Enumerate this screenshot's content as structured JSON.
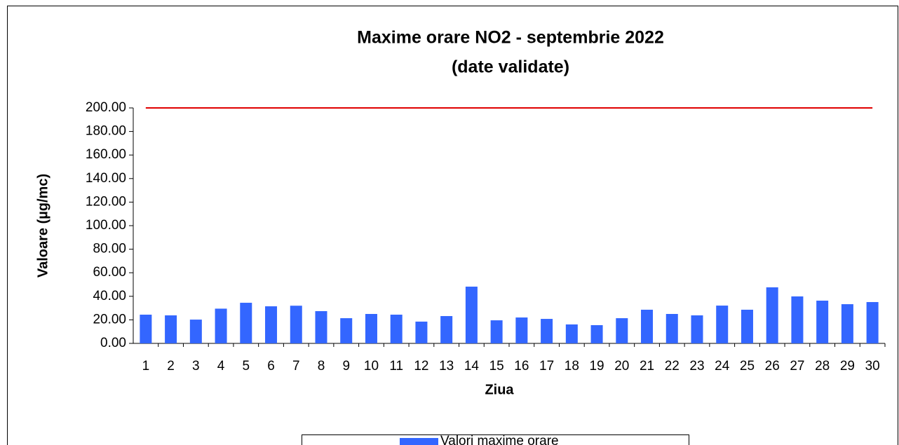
{
  "chart_data": {
    "type": "bar",
    "title": [
      "Maxime orare NO2 -  septembrie 2022",
      "(date validate)"
    ],
    "x_label": "Ziua",
    "y_label": "Valoare (µg/mc)",
    "categories": [
      "1",
      "2",
      "3",
      "4",
      "5",
      "6",
      "7",
      "8",
      "9",
      "10",
      "11",
      "12",
      "13",
      "14",
      "15",
      "16",
      "17",
      "18",
      "19",
      "20",
      "21",
      "22",
      "23",
      "24",
      "25",
      "26",
      "27",
      "28",
      "29",
      "30"
    ],
    "series": [
      {
        "name": "Valori maxime orare",
        "color": "#3366ff",
        "values": [
          24.4,
          23.8,
          20.2,
          29.5,
          34.5,
          31.5,
          32,
          27.4,
          21.4,
          25,
          24.4,
          18.5,
          23.2,
          48.2,
          19.6,
          22,
          20.8,
          16.1,
          15.5,
          21.4,
          28.6,
          25,
          23.8,
          32.1,
          28.6,
          47.6,
          39.9,
          36.3,
          33.3,
          35.1
        ]
      }
    ],
    "limit": {
      "value": 200,
      "color": "#e00000"
    },
    "ylim": [
      0,
      200
    ],
    "yticks": [
      {
        "value": 0,
        "label": "0.00"
      },
      {
        "value": 20,
        "label": "20.00"
      },
      {
        "value": 40,
        "label": "40.00"
      },
      {
        "value": 60,
        "label": "60.00"
      },
      {
        "value": 80,
        "label": "80.00"
      },
      {
        "value": 100,
        "label": "100.00"
      },
      {
        "value": 120,
        "label": "120.00"
      },
      {
        "value": 140,
        "label": "140.00"
      },
      {
        "value": 160,
        "label": "160.00"
      },
      {
        "value": 180,
        "label": "180.00"
      },
      {
        "value": 200,
        "label": "200.00"
      }
    ],
    "grid": false
  }
}
